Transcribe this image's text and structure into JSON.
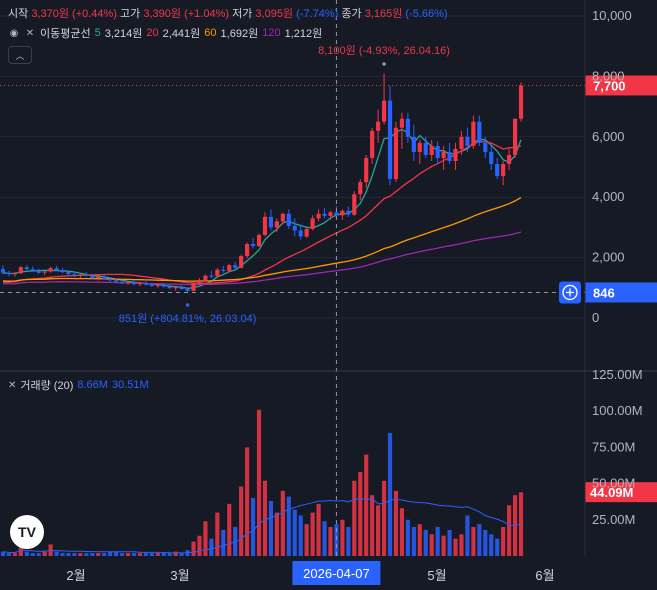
{
  "ohlc": {
    "open_label": "시작",
    "open": "3,370원",
    "open_chg": "(+0.44%)",
    "high_label": "고가",
    "high": "3,390원",
    "high_chg": "(+1.04%)",
    "low_label": "저가",
    "low": "3,095원",
    "low_chg": "(-7.74%)",
    "close_label": "종가",
    "close": "3,165원",
    "close_chg": "(-5.66%)"
  },
  "ma_legend": {
    "title": "이동평균선",
    "p5": "5",
    "v5": "3,214원",
    "p20": "20",
    "v20": "2,441원",
    "p60": "60",
    "v60": "1,692원",
    "p120": "120",
    "v120": "1,212원"
  },
  "volume_legend": {
    "title": "거래량 (20)",
    "v1": "8.66M",
    "v2": "30.51M"
  },
  "colors": {
    "up": "#f23645",
    "down": "#2962ff",
    "ma5": "#26a69a",
    "ma20": "#f23645",
    "ma60": "#ff9800",
    "ma120": "#9c27b0",
    "vol_ma": "#2962ff",
    "bg": "#161a25"
  },
  "chart_data": {
    "type": "candlestick",
    "price_axis": {
      "ticks": [
        "10,000",
        "8,000",
        "6,000",
        "4,000",
        "2,000",
        "0"
      ],
      "ylim": [
        0,
        10000
      ]
    },
    "volume_axis": {
      "ticks": [
        "125.00M",
        "100.00M",
        "75.00M",
        "50.00M",
        "25.00M"
      ],
      "ylim": [
        0,
        125
      ]
    },
    "x_ticks": [
      "2월",
      "3월",
      "5월",
      "6월"
    ],
    "crosshair": {
      "x_label": "2026-04-07"
    },
    "current_price_label": "7,700",
    "current_price": 7700,
    "left_price_label": "846",
    "left_price": 846,
    "current_volume_label": "44.09M",
    "current_volume": 44.09,
    "annotations": {
      "high": "8,100원 (-4.93%, 26.04.16)",
      "low": "851원 (+804.81%, 26.03.04)"
    },
    "candles": [
      [
        1620,
        1750,
        1450,
        1500
      ],
      [
        1500,
        1560,
        1380,
        1450
      ],
      [
        1450,
        1520,
        1370,
        1480
      ],
      [
        1480,
        1720,
        1460,
        1680
      ],
      [
        1680,
        1750,
        1580,
        1620
      ],
      [
        1620,
        1700,
        1520,
        1560
      ],
      [
        1560,
        1640,
        1460,
        1500
      ],
      [
        1500,
        1580,
        1420,
        1540
      ],
      [
        1540,
        1700,
        1500,
        1650
      ],
      [
        1650,
        1730,
        1560,
        1590
      ],
      [
        1590,
        1660,
        1480,
        1520
      ],
      [
        1520,
        1580,
        1400,
        1450
      ],
      [
        1450,
        1520,
        1350,
        1400
      ],
      [
        1400,
        1460,
        1320,
        1440
      ],
      [
        1440,
        1520,
        1380,
        1400
      ],
      [
        1400,
        1460,
        1280,
        1320
      ],
      [
        1320,
        1400,
        1240,
        1360
      ],
      [
        1360,
        1420,
        1260,
        1290
      ],
      [
        1290,
        1350,
        1200,
        1250
      ],
      [
        1250,
        1320,
        1150,
        1200
      ],
      [
        1200,
        1280,
        1120,
        1150
      ],
      [
        1150,
        1230,
        1100,
        1190
      ],
      [
        1190,
        1240,
        1080,
        1120
      ],
      [
        1120,
        1200,
        1060,
        1160
      ],
      [
        1160,
        1220,
        1080,
        1100
      ],
      [
        1100,
        1160,
        1030,
        1060
      ],
      [
        1060,
        1130,
        1000,
        1090
      ],
      [
        1090,
        1150,
        1010,
        1040
      ],
      [
        1040,
        1100,
        960,
        990
      ],
      [
        990,
        1060,
        900,
        1020
      ],
      [
        1020,
        1080,
        940,
        960
      ],
      [
        960,
        1010,
        851,
        900
      ],
      [
        900,
        1180,
        880,
        1140
      ],
      [
        1140,
        1320,
        1100,
        1260
      ],
      [
        1260,
        1450,
        1200,
        1400
      ],
      [
        1400,
        1560,
        1320,
        1380
      ],
      [
        1380,
        1650,
        1350,
        1600
      ],
      [
        1600,
        1720,
        1500,
        1560
      ],
      [
        1560,
        1800,
        1520,
        1750
      ],
      [
        1750,
        1850,
        1600,
        1660
      ],
      [
        1660,
        2100,
        1640,
        2050
      ],
      [
        2050,
        2500,
        1980,
        2450
      ],
      [
        2450,
        2650,
        2300,
        2380
      ],
      [
        2380,
        2800,
        2350,
        2750
      ],
      [
        2750,
        3500,
        2700,
        3350
      ],
      [
        3350,
        3600,
        2900,
        3000
      ],
      [
        3000,
        3300,
        2850,
        3200
      ],
      [
        3200,
        3500,
        3100,
        3450
      ],
      [
        3450,
        3600,
        2950,
        3050
      ],
      [
        3050,
        3300,
        2700,
        2900
      ],
      [
        2900,
        3100,
        2600,
        2700
      ],
      [
        2700,
        3000,
        2650,
        2950
      ],
      [
        2950,
        3400,
        2900,
        3300
      ],
      [
        3300,
        3600,
        3200,
        3450
      ],
      [
        3450,
        3650,
        3300,
        3380
      ],
      [
        3380,
        3550,
        3250,
        3500
      ],
      [
        3500,
        3700,
        3300,
        3400
      ],
      [
        3400,
        3600,
        3250,
        3550
      ],
      [
        3550,
        3700,
        3350,
        3420
      ],
      [
        3420,
        4200,
        3380,
        4100
      ],
      [
        4100,
        4600,
        3900,
        4500
      ],
      [
        4500,
        5400,
        4300,
        5300
      ],
      [
        5300,
        6300,
        5100,
        6200
      ],
      [
        6200,
        6900,
        5800,
        6500
      ],
      [
        6500,
        8100,
        6400,
        7200
      ],
      [
        7200,
        7700,
        4400,
        4600
      ],
      [
        4600,
        6500,
        4500,
        6300
      ],
      [
        6300,
        6800,
        5600,
        6600
      ],
      [
        6600,
        6800,
        5800,
        6000
      ],
      [
        6000,
        6400,
        5200,
        5500
      ],
      [
        5500,
        5900,
        5100,
        5800
      ],
      [
        5800,
        6000,
        5300,
        5400
      ],
      [
        5400,
        5900,
        5200,
        5700
      ],
      [
        5700,
        5850,
        5100,
        5300
      ],
      [
        5300,
        5700,
        4900,
        5500
      ],
      [
        5500,
        5800,
        5100,
        5200
      ],
      [
        5200,
        5800,
        4900,
        5600
      ],
      [
        5600,
        6200,
        5400,
        6000
      ],
      [
        6000,
        6300,
        5500,
        5700
      ],
      [
        5700,
        6700,
        5600,
        6500
      ],
      [
        6500,
        6700,
        5700,
        5800
      ],
      [
        5800,
        6000,
        5300,
        5500
      ],
      [
        5500,
        5700,
        4900,
        5100
      ],
      [
        5100,
        5300,
        4600,
        4700
      ],
      [
        4700,
        5200,
        4400,
        5100
      ],
      [
        5100,
        5600,
        4900,
        5400
      ],
      [
        5400,
        6600,
        5300,
        6600
      ],
      [
        6600,
        7800,
        6500,
        7700
      ]
    ],
    "volume": [
      3,
      2,
      2,
      9,
      3,
      2,
      2,
      3,
      8,
      3,
      2,
      2,
      2,
      2,
      2,
      2,
      2,
      2,
      3,
      3,
      2,
      2,
      2,
      2,
      2,
      2,
      2,
      2,
      2,
      3,
      2,
      4,
      10,
      14,
      24,
      12,
      30,
      18,
      36,
      20,
      48,
      75,
      40,
      101,
      52,
      38,
      30,
      45,
      41,
      32,
      28,
      22,
      30,
      36,
      24,
      20,
      22,
      25,
      20,
      52,
      58,
      70,
      42,
      35,
      52,
      85,
      45,
      33,
      25,
      20,
      22,
      18,
      15,
      20,
      14,
      18,
      12,
      15,
      28,
      20,
      22,
      18,
      15,
      12,
      20,
      35,
      42,
      44
    ]
  }
}
